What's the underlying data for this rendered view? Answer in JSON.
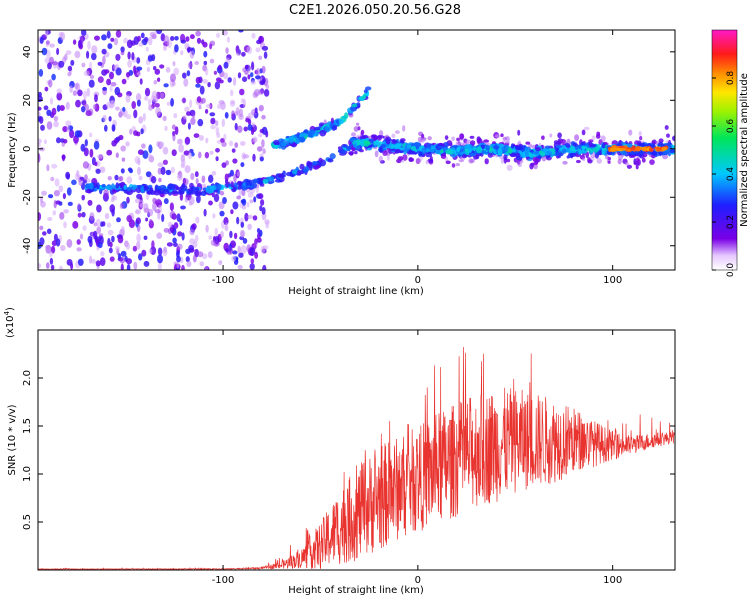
{
  "title": "C2E1.2026.050.20.56.G28",
  "colors": {
    "snr_line": "#e8332f",
    "axis": "#000000",
    "background": "#ffffff"
  },
  "chart_data": [
    {
      "type": "heatmap",
      "title": "C2E1.2026.050.20.56.G28",
      "xlabel": "Height of straight line (km)",
      "ylabel": "Frequency (Hz)",
      "xlim": [
        -195,
        132
      ],
      "ylim": [
        -50,
        49
      ],
      "xticks": [
        -100,
        0,
        100
      ],
      "yticks": [
        -40,
        -20,
        0,
        20,
        40
      ],
      "xtick_labels": [
        "-100",
        "0",
        "100"
      ],
      "ytick_labels": [
        "-40",
        "-20",
        "0",
        "20",
        "40"
      ],
      "colorbar": {
        "label": "Normalized spectral amplitude",
        "range": [
          0,
          1
        ],
        "ticks": [
          0.0,
          0.2,
          0.4,
          0.6,
          0.8
        ],
        "tick_labels": [
          "0.0",
          "0.2",
          "0.4",
          "0.6",
          "0.8"
        ],
        "colormap": "rainbow (white-violet-blue-cyan-green-yellow-red-magenta)"
      },
      "features": [
        {
          "name": "noise-region",
          "x_range": [
            -195,
            -77
          ],
          "freq_range": [
            -50,
            49
          ],
          "amplitude": "low 0.05-0.3"
        },
        {
          "name": "lower-branch",
          "x": [
            -170,
            -150,
            -130,
            -110,
            -90,
            -75,
            -60,
            -45,
            -35
          ],
          "freq": [
            -16,
            -16,
            -17,
            -17,
            -15,
            -13,
            -9,
            -4,
            1
          ],
          "amplitude": 0.4
        },
        {
          "name": "upper-branch",
          "x": [
            -75,
            -62,
            -50,
            -40,
            -33,
            -25
          ],
          "freq": [
            1,
            4,
            8,
            11,
            17,
            24
          ],
          "amplitude": 0.45
        },
        {
          "name": "main-ridge",
          "x": [
            -35,
            -20,
            0,
            20,
            40,
            60,
            80,
            95,
            110,
            125,
            132
          ],
          "freq": [
            3,
            2,
            0,
            -1,
            0,
            -2,
            0,
            0,
            0,
            0,
            0
          ],
          "amplitude": 0.5
        },
        {
          "name": "high-amplitude-end",
          "x_range": [
            98,
            128
          ],
          "freq": 0,
          "amplitude": 0.85
        }
      ]
    },
    {
      "type": "line",
      "xlabel": "Height of straight line (km)",
      "ylabel": "SNR (10 * v/v)",
      "y_multiplier_label": "(x10",
      "y_multiplier_exp": "4",
      "xlim": [
        -195,
        132
      ],
      "ylim": [
        0,
        2.5
      ],
      "xticks": [
        -100,
        0,
        100
      ],
      "yticks": [
        0.5,
        1.0,
        1.5,
        2.0
      ],
      "xtick_labels": [
        "-100",
        "0",
        "100"
      ],
      "ytick_labels": [
        "0.5",
        "1.0",
        "1.5",
        "2.0"
      ],
      "series": [
        {
          "name": "SNR",
          "x": [
            -195,
            -150,
            -100,
            -80,
            -70,
            -60,
            -50,
            -40,
            -30,
            -20,
            -10,
            0,
            10,
            20,
            30,
            40,
            50,
            60,
            70,
            80,
            90,
            100,
            110,
            120,
            132
          ],
          "mean": [
            0.01,
            0.01,
            0.01,
            0.02,
            0.05,
            0.12,
            0.25,
            0.45,
            0.6,
            0.75,
            0.85,
            0.95,
            1.05,
            1.15,
            1.25,
            1.3,
            1.35,
            1.35,
            1.35,
            1.35,
            1.32,
            1.3,
            1.3,
            1.35,
            1.38
          ],
          "spread": [
            0.003,
            0.003,
            0.004,
            0.01,
            0.04,
            0.1,
            0.25,
            0.4,
            0.5,
            0.55,
            0.55,
            0.55,
            0.6,
            0.6,
            0.6,
            0.6,
            0.55,
            0.5,
            0.45,
            0.35,
            0.25,
            0.15,
            0.1,
            0.08,
            0.06
          ],
          "peak": [
            0.02,
            0.02,
            0.02,
            0.04,
            0.15,
            0.4,
            0.65,
            1.0,
            1.3,
            1.55,
            1.7,
            1.8,
            2.2,
            2.35,
            2.4,
            2.45,
            2.4,
            2.3,
            2.1,
            1.9,
            1.6,
            1.55,
            1.6,
            1.7,
            1.6
          ]
        }
      ]
    }
  ]
}
